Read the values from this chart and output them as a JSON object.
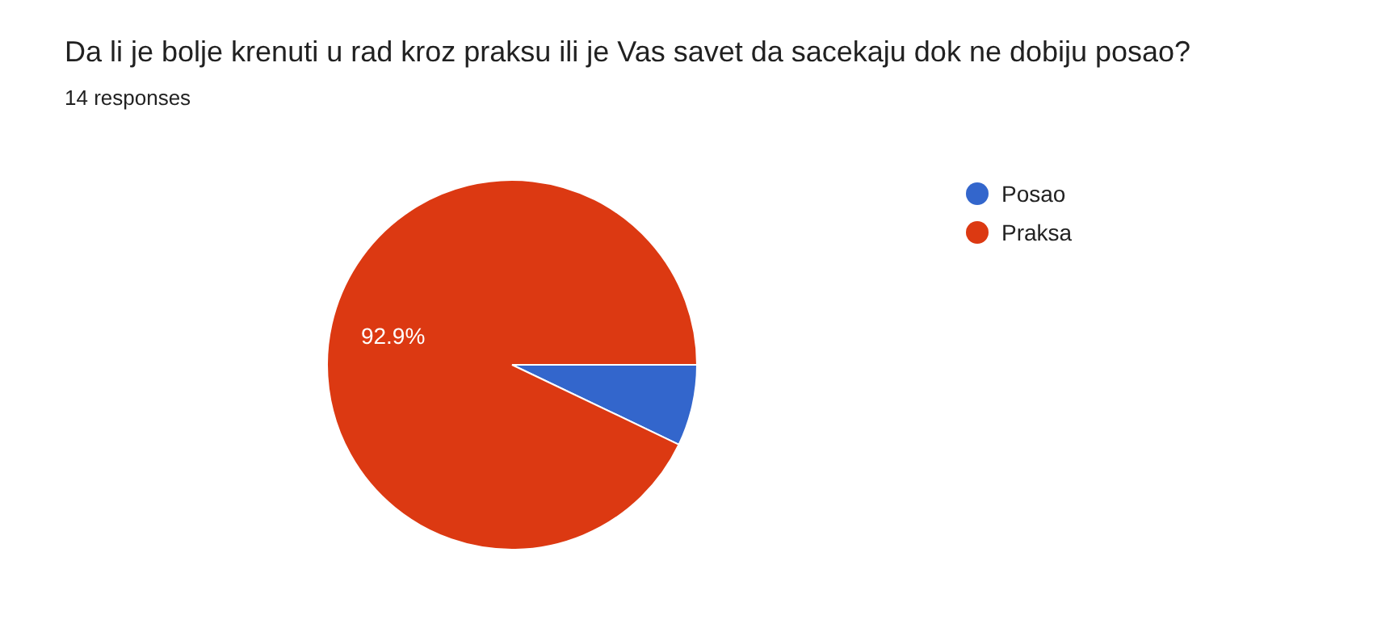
{
  "chart_data": {
    "type": "pie",
    "title": "Da li je bolje krenuti u rad kroz praksu ili je Vas savet da sacekaju dok ne dobiju posao?",
    "subtitle": "14 responses",
    "categories": [
      "Posao",
      "Praksa"
    ],
    "values": [
      7.1,
      92.9
    ],
    "colors": [
      "#3366cc",
      "#dc3912"
    ],
    "value_labels": [
      null,
      "92.9%"
    ],
    "legend": "right"
  }
}
